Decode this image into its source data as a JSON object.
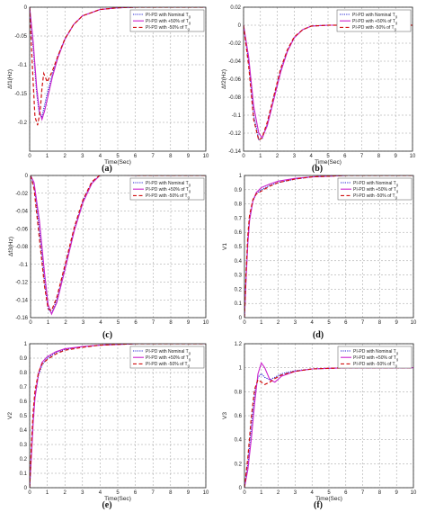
{
  "chart_data": [
    {
      "type": "line",
      "caption": "(a)",
      "xlabel": "Time(Sec)",
      "ylabel": "Δf1(Hz)",
      "xlim": [
        0,
        10
      ],
      "ylim": [
        -0.25,
        0
      ],
      "xticks": [
        "0",
        "1",
        "2",
        "3",
        "4",
        "5",
        "6",
        "7",
        "8",
        "9",
        "10"
      ],
      "yticks": [
        "0",
        "-0.05",
        "-0.1",
        "-0.15",
        "-0.2"
      ],
      "ytick_values": [
        0,
        -0.05,
        -0.1,
        -0.15,
        -0.2
      ],
      "grid": true,
      "legend": "top-right",
      "series": [
        {
          "name": "PI-PD with Nominal T",
          "sub": "g",
          "color": "#1f1fd0",
          "dash": "1.2,1.2",
          "x": [
            0,
            0.2,
            0.4,
            0.55,
            0.7,
            0.85,
            1.0,
            1.3,
            1.6,
            2.0,
            2.5,
            3.0,
            4.0,
            5.0,
            6.0,
            10.0
          ],
          "y": [
            0,
            -0.07,
            -0.15,
            -0.185,
            -0.19,
            -0.17,
            -0.15,
            -0.115,
            -0.085,
            -0.055,
            -0.03,
            -0.015,
            -0.004,
            -0.001,
            0,
            0
          ]
        },
        {
          "name": "PI-PD with +50% of T",
          "sub": "g",
          "color": "#cc22cc",
          "dash": "",
          "x": [
            0,
            0.2,
            0.4,
            0.55,
            0.7,
            0.85,
            1.0,
            1.3,
            1.6,
            2.0,
            2.5,
            3.0,
            4.0,
            5.0,
            6.0,
            10.0
          ],
          "y": [
            0,
            -0.06,
            -0.14,
            -0.18,
            -0.195,
            -0.18,
            -0.16,
            -0.12,
            -0.088,
            -0.056,
            -0.03,
            -0.015,
            -0.004,
            -0.001,
            0,
            0
          ]
        },
        {
          "name": "PI-PD with -50% of T",
          "sub": "g",
          "color": "#d01010",
          "dash": "4,2.5",
          "x": [
            0,
            0.15,
            0.3,
            0.45,
            0.6,
            0.7,
            0.8,
            1.0,
            1.3,
            1.6,
            2.0,
            2.5,
            3.0,
            4.0,
            5.0,
            6.0,
            10.0
          ],
          "y": [
            0,
            -0.1,
            -0.19,
            -0.205,
            -0.18,
            -0.14,
            -0.115,
            -0.13,
            -0.11,
            -0.085,
            -0.055,
            -0.03,
            -0.015,
            -0.004,
            -0.001,
            0,
            0
          ]
        }
      ]
    },
    {
      "type": "line",
      "caption": "(b)",
      "xlabel": "Time(Sec)",
      "ylabel": "Δf2(Hz)",
      "xlim": [
        0,
        10
      ],
      "ylim": [
        -0.14,
        0.02
      ],
      "xticks": [
        "0",
        "1",
        "2",
        "3",
        "4",
        "5",
        "6",
        "7",
        "8",
        "9",
        "10"
      ],
      "yticks": [
        "0.02",
        "0",
        "-0.02",
        "-0.04",
        "-0.06",
        "-0.08",
        "-0.1",
        "-0.12",
        "-0.14"
      ],
      "ytick_values": [
        0.02,
        0,
        -0.02,
        -0.04,
        -0.06,
        -0.08,
        -0.1,
        -0.12,
        -0.14
      ],
      "grid": true,
      "legend": "top-right",
      "series": [
        {
          "name": "PI-PD with Nominal T",
          "sub": "g",
          "color": "#1f1fd0",
          "dash": "1.2,1.2",
          "x": [
            0,
            0.3,
            0.6,
            0.9,
            1.1,
            1.4,
            1.8,
            2.2,
            2.6,
            3.0,
            3.5,
            4.0,
            5.0,
            6.0,
            10.0
          ],
          "y": [
            0,
            -0.04,
            -0.1,
            -0.127,
            -0.126,
            -0.11,
            -0.08,
            -0.05,
            -0.028,
            -0.014,
            -0.005,
            -0.001,
            0,
            0,
            0
          ]
        },
        {
          "name": "PI-PD with +50% of T",
          "sub": "g",
          "color": "#cc22cc",
          "dash": "",
          "x": [
            0,
            0.3,
            0.6,
            0.9,
            1.1,
            1.4,
            1.8,
            2.2,
            2.6,
            3.0,
            3.5,
            4.0,
            5.0,
            6.0,
            10.0
          ],
          "y": [
            0,
            -0.035,
            -0.09,
            -0.12,
            -0.125,
            -0.112,
            -0.082,
            -0.052,
            -0.029,
            -0.014,
            -0.005,
            -0.001,
            0,
            0,
            0
          ]
        },
        {
          "name": "PI-PD with -50% of T",
          "sub": "g",
          "color": "#d01010",
          "dash": "4,2.5",
          "x": [
            0,
            0.3,
            0.6,
            0.9,
            1.1,
            1.4,
            1.8,
            2.2,
            2.6,
            3.0,
            3.5,
            4.0,
            5.0,
            6.0,
            10.0
          ],
          "y": [
            0,
            -0.045,
            -0.105,
            -0.128,
            -0.125,
            -0.108,
            -0.078,
            -0.048,
            -0.027,
            -0.013,
            -0.005,
            -0.001,
            0,
            0,
            0
          ]
        }
      ]
    },
    {
      "type": "line",
      "caption": "(c)",
      "xlabel": "",
      "ylabel": "Δf3(Hz)",
      "xlim": [
        0,
        10
      ],
      "ylim": [
        -0.16,
        0
      ],
      "xticks": [
        "0",
        "1",
        "2",
        "3",
        "4",
        "5",
        "6",
        "7",
        "8",
        "9",
        "10"
      ],
      "yticks": [
        "0",
        "-0.02",
        "-0.04",
        "-0.06",
        "-0.08",
        "-0.1",
        "-0.12",
        "-0.14",
        "-0.16"
      ],
      "ytick_values": [
        0,
        -0.02,
        -0.04,
        -0.06,
        -0.08,
        -0.1,
        -0.12,
        -0.14,
        -0.16
      ],
      "grid": true,
      "legend": "top-right",
      "series": [
        {
          "name": "PI-PD with Nominal T",
          "sub": "g",
          "color": "#1f1fd0",
          "dash": "1.2,1.2",
          "x": [
            0,
            0.2,
            0.5,
            0.8,
            1.0,
            1.2,
            1.5,
            2.0,
            2.5,
            3.0,
            3.5,
            4.0,
            4.5,
            5.0,
            6.0,
            10.0
          ],
          "y": [
            0,
            -0.01,
            -0.06,
            -0.12,
            -0.15,
            -0.155,
            -0.14,
            -0.1,
            -0.06,
            -0.028,
            -0.008,
            0.001,
            0.002,
            0.001,
            0,
            0
          ]
        },
        {
          "name": "PI-PD with +50% of T",
          "sub": "g",
          "color": "#cc22cc",
          "dash": "",
          "x": [
            0,
            0.2,
            0.5,
            0.8,
            1.0,
            1.2,
            1.5,
            2.0,
            2.5,
            3.0,
            3.5,
            4.0,
            4.5,
            5.0,
            6.0,
            10.0
          ],
          "y": [
            0,
            -0.008,
            -0.05,
            -0.11,
            -0.145,
            -0.156,
            -0.143,
            -0.103,
            -0.062,
            -0.03,
            -0.009,
            0.001,
            0.002,
            0.001,
            0,
            0
          ]
        },
        {
          "name": "PI-PD with -50% of T",
          "sub": "g",
          "color": "#d01010",
          "dash": "4,2.5",
          "x": [
            0,
            0.2,
            0.5,
            0.8,
            1.0,
            1.2,
            1.5,
            2.0,
            2.5,
            3.0,
            3.5,
            4.0,
            4.5,
            5.0,
            6.0,
            10.0
          ],
          "y": [
            0,
            -0.015,
            -0.07,
            -0.125,
            -0.15,
            -0.152,
            -0.137,
            -0.098,
            -0.058,
            -0.027,
            -0.007,
            0.001,
            0.002,
            0.001,
            0,
            0
          ]
        }
      ]
    },
    {
      "type": "line",
      "caption": "(d)",
      "xlabel": "",
      "ylabel": "V1",
      "xlim": [
        0,
        10
      ],
      "ylim": [
        0,
        1
      ],
      "xticks": [
        "0",
        "1",
        "2",
        "3",
        "4",
        "5",
        "6",
        "7",
        "8",
        "9",
        "10"
      ],
      "yticks": [
        "1",
        "0.9",
        "0.8",
        "0.7",
        "0.6",
        "0.5",
        "0.4",
        "0.3",
        "0.2",
        "0.1",
        "0"
      ],
      "ytick_values": [
        1,
        0.9,
        0.8,
        0.7,
        0.6,
        0.5,
        0.4,
        0.3,
        0.2,
        0.1,
        0
      ],
      "grid": true,
      "legend": "top-right",
      "series": [
        {
          "name": "PI-PD with Nominal T",
          "sub": "g",
          "color": "#1f1fd0",
          "dash": "1.2,1.2",
          "x": [
            0,
            0.1,
            0.2,
            0.3,
            0.5,
            0.7,
            1.0,
            1.5,
            2.0,
            3.0,
            4.0,
            5.0,
            6.0,
            10.0
          ],
          "y": [
            0,
            0.3,
            0.55,
            0.7,
            0.82,
            0.87,
            0.9,
            0.93,
            0.95,
            0.975,
            0.99,
            0.995,
            1.0,
            1.0
          ]
        },
        {
          "name": "PI-PD with +50% of T",
          "sub": "g",
          "color": "#cc22cc",
          "dash": "",
          "x": [
            0,
            0.1,
            0.2,
            0.3,
            0.5,
            0.7,
            1.0,
            1.5,
            2.0,
            3.0,
            4.0,
            5.0,
            6.0,
            10.0
          ],
          "y": [
            0,
            0.28,
            0.52,
            0.68,
            0.82,
            0.88,
            0.915,
            0.94,
            0.96,
            0.98,
            0.99,
            0.995,
            1.0,
            1.0
          ]
        },
        {
          "name": "PI-PD with -50% of T",
          "sub": "g",
          "color": "#d01010",
          "dash": "4,2.5",
          "x": [
            0,
            0.1,
            0.2,
            0.3,
            0.5,
            0.7,
            1.0,
            1.5,
            2.0,
            3.0,
            4.0,
            5.0,
            6.0,
            10.0
          ],
          "y": [
            0,
            0.33,
            0.58,
            0.72,
            0.83,
            0.87,
            0.89,
            0.925,
            0.95,
            0.975,
            0.99,
            0.995,
            1.0,
            1.0
          ]
        }
      ]
    },
    {
      "type": "line",
      "caption": "(e)",
      "xlabel": "Time(Sec)",
      "ylabel": "V2",
      "xlim": [
        0,
        10
      ],
      "ylim": [
        0,
        1
      ],
      "xticks": [
        "0",
        "1",
        "2",
        "3",
        "4",
        "5",
        "6",
        "7",
        "8",
        "9",
        "10"
      ],
      "yticks": [
        "1",
        "0.9",
        "0.8",
        "0.7",
        "0.6",
        "0.5",
        "0.4",
        "0.3",
        "0.2",
        "0.1",
        "0"
      ],
      "ytick_values": [
        1,
        0.9,
        0.8,
        0.7,
        0.6,
        0.5,
        0.4,
        0.3,
        0.2,
        0.1,
        0
      ],
      "grid": true,
      "legend": "top-right",
      "series": [
        {
          "name": "PI-PD with Nominal T",
          "sub": "g",
          "color": "#1f1fd0",
          "dash": "1.2,1.2",
          "x": [
            0,
            0.1,
            0.2,
            0.3,
            0.5,
            0.7,
            1.0,
            1.5,
            2.0,
            3.0,
            4.0,
            5.0,
            6.0,
            10.0
          ],
          "y": [
            0,
            0.25,
            0.48,
            0.63,
            0.78,
            0.85,
            0.9,
            0.94,
            0.96,
            0.98,
            0.99,
            0.995,
            1.0,
            1.0
          ]
        },
        {
          "name": "PI-PD with +50% of T",
          "sub": "g",
          "color": "#cc22cc",
          "dash": "",
          "x": [
            0,
            0.1,
            0.2,
            0.3,
            0.5,
            0.7,
            1.0,
            1.5,
            2.0,
            3.0,
            4.0,
            5.0,
            6.0,
            10.0
          ],
          "y": [
            0,
            0.22,
            0.45,
            0.62,
            0.79,
            0.87,
            0.91,
            0.945,
            0.965,
            0.98,
            0.99,
            0.995,
            1.0,
            1.0
          ]
        },
        {
          "name": "PI-PD with -50% of T",
          "sub": "g",
          "color": "#d01010",
          "dash": "4,2.5",
          "x": [
            0,
            0.1,
            0.2,
            0.3,
            0.5,
            0.7,
            1.0,
            1.5,
            2.0,
            3.0,
            4.0,
            5.0,
            6.0,
            10.0
          ],
          "y": [
            0,
            0.3,
            0.53,
            0.67,
            0.8,
            0.86,
            0.89,
            0.93,
            0.955,
            0.975,
            0.99,
            0.995,
            1.0,
            1.0
          ]
        }
      ]
    },
    {
      "type": "line",
      "caption": "(f)",
      "xlabel": "Time(Sec)",
      "ylabel": "V3",
      "xlim": [
        0,
        10
      ],
      "ylim": [
        0,
        1.2
      ],
      "xticks": [
        "0",
        "1",
        "2",
        "3",
        "4",
        "5",
        "6",
        "7",
        "8",
        "9",
        "10"
      ],
      "yticks": [
        "1.2",
        "1",
        "0.8",
        "0.6",
        "0.4",
        "0.2",
        "0"
      ],
      "ytick_values": [
        1.2,
        1,
        0.8,
        0.6,
        0.4,
        0.2,
        0
      ],
      "grid": true,
      "legend": "top-right",
      "series": [
        {
          "name": "PI-PD with Nominal T",
          "sub": "g",
          "color": "#1f1fd0",
          "dash": "1.2,1.2",
          "x": [
            0,
            0.2,
            0.4,
            0.6,
            0.8,
            1.0,
            1.2,
            1.5,
            1.8,
            2.2,
            3.0,
            4.0,
            5.0,
            6.0,
            10.0
          ],
          "y": [
            0,
            0.2,
            0.5,
            0.78,
            0.92,
            0.95,
            0.92,
            0.9,
            0.92,
            0.95,
            0.975,
            0.99,
            0.995,
            1.0,
            1.0
          ]
        },
        {
          "name": "PI-PD with +50% of T",
          "sub": "g",
          "color": "#cc22cc",
          "dash": "",
          "x": [
            0,
            0.2,
            0.4,
            0.6,
            0.8,
            1.0,
            1.2,
            1.5,
            1.8,
            2.2,
            3.0,
            4.0,
            5.0,
            6.0,
            10.0
          ],
          "y": [
            0,
            0.15,
            0.4,
            0.7,
            0.95,
            1.04,
            1.0,
            0.9,
            0.88,
            0.93,
            0.97,
            0.99,
            0.995,
            1.0,
            1.0
          ]
        },
        {
          "name": "PI-PD with -50% of T",
          "sub": "g",
          "color": "#d01010",
          "dash": "4,2.5",
          "x": [
            0,
            0.2,
            0.4,
            0.6,
            0.8,
            1.0,
            1.2,
            1.5,
            1.8,
            2.2,
            3.0,
            4.0,
            5.0,
            6.0,
            10.0
          ],
          "y": [
            0,
            0.25,
            0.58,
            0.82,
            0.9,
            0.88,
            0.86,
            0.88,
            0.91,
            0.94,
            0.97,
            0.99,
            0.995,
            1.0,
            1.0
          ]
        }
      ]
    }
  ]
}
